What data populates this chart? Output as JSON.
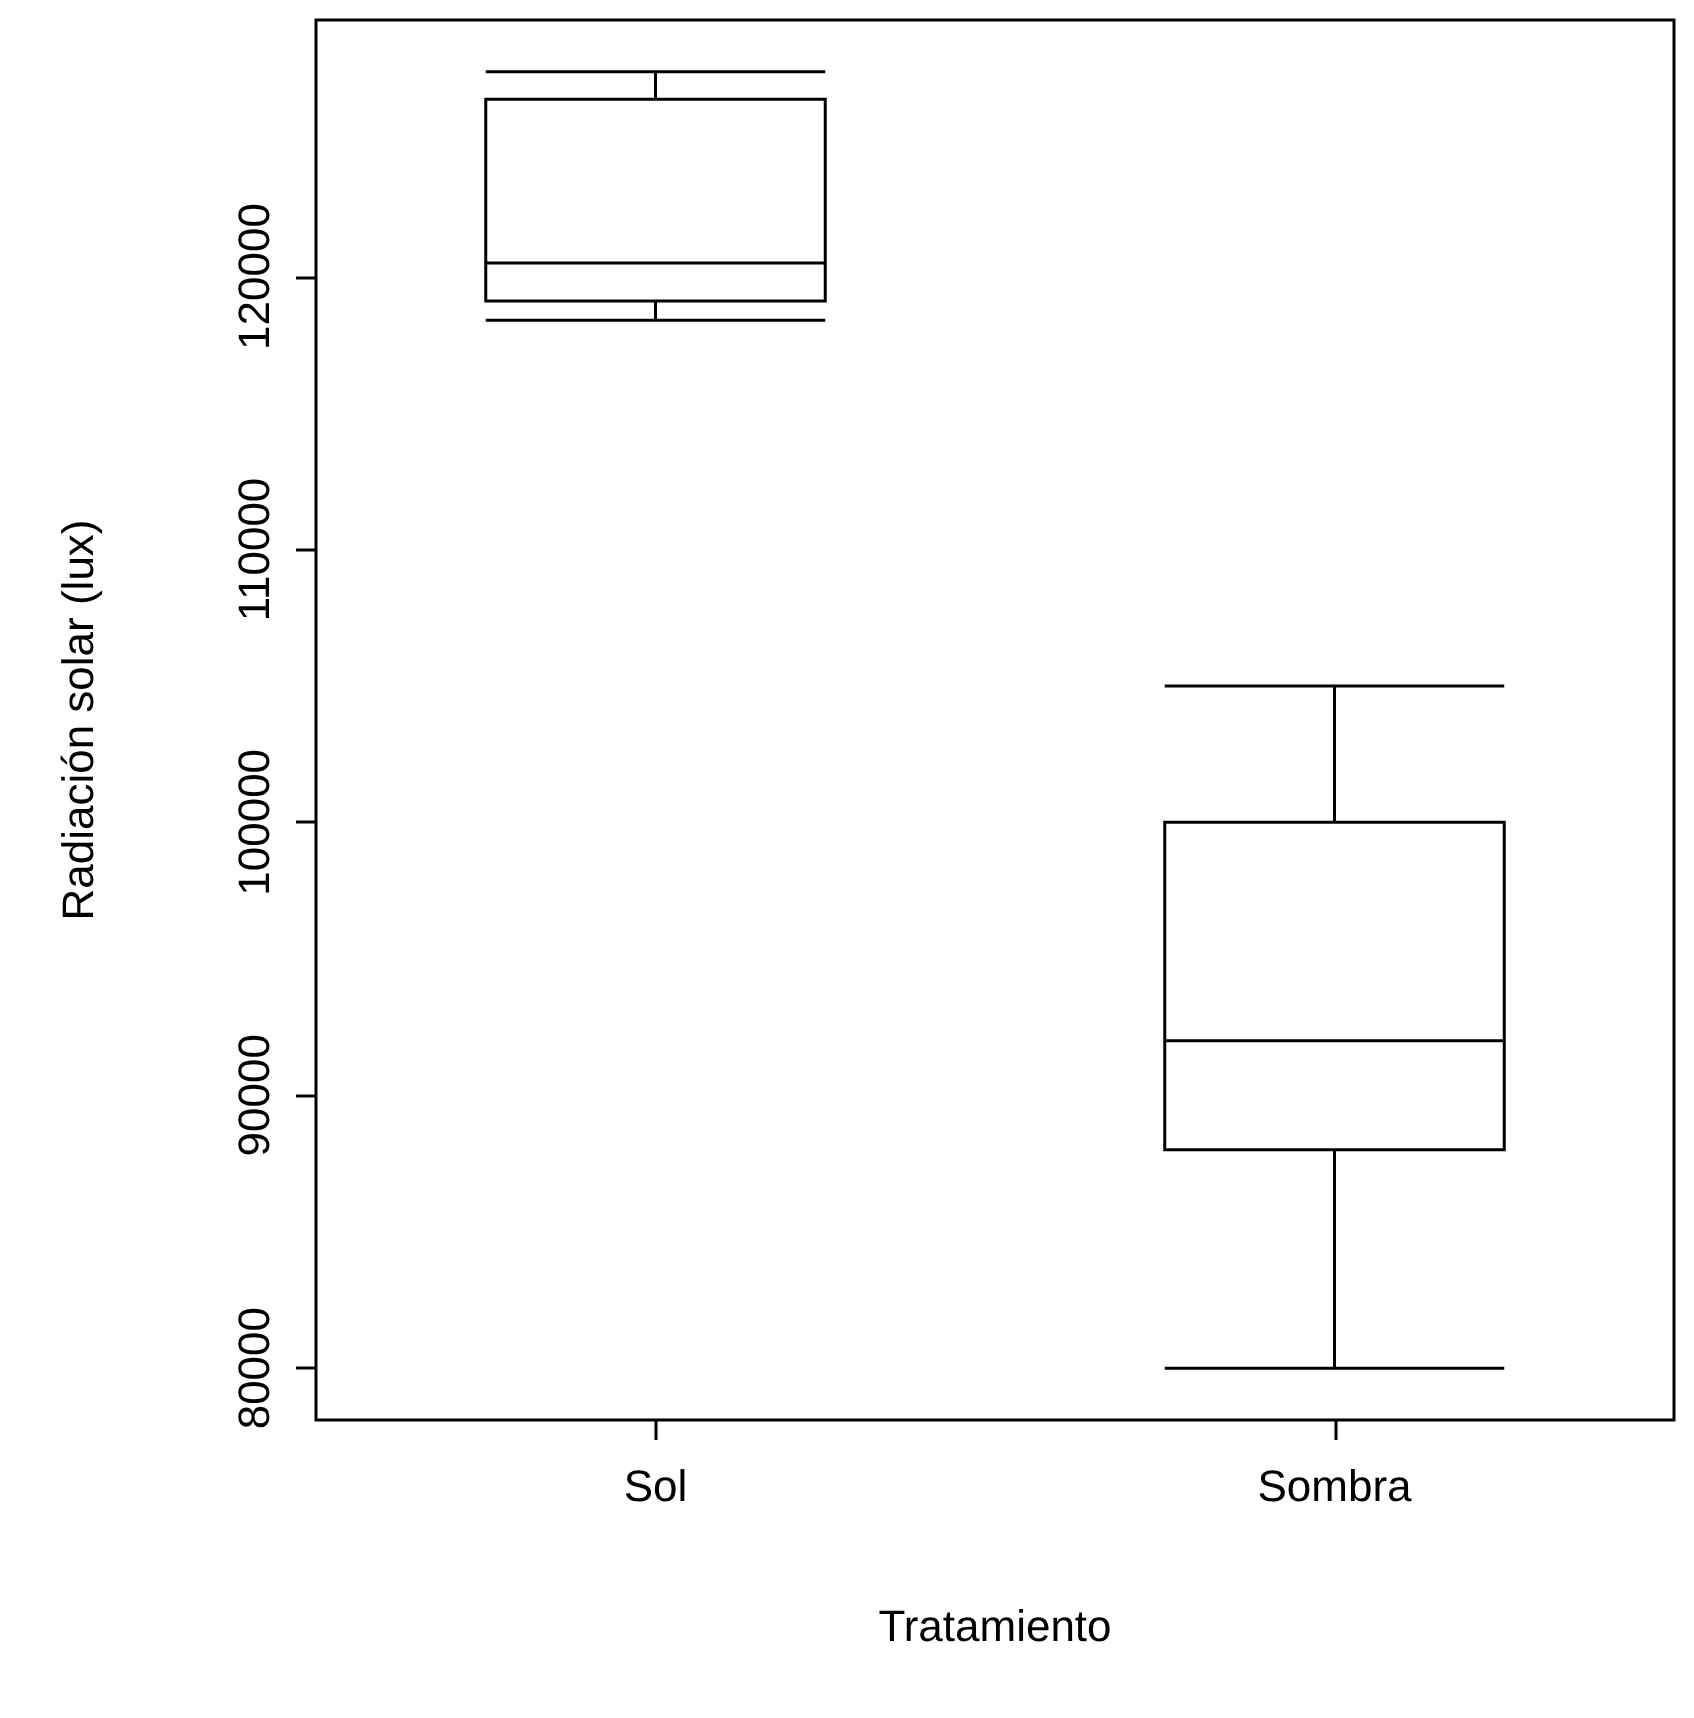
{
  "chart_data": {
    "type": "box",
    "xlabel": "Tratamiento",
    "ylabel": "Radiación solar (lux)",
    "categories": [
      "Sol",
      "Sombra"
    ],
    "boxes": [
      {
        "low": 118400,
        "q1": 119100,
        "median": 120500,
        "q3": 126500,
        "high": 127500
      },
      {
        "low": 80000,
        "q1": 88000,
        "median": 92000,
        "q3": 100000,
        "high": 105000
      }
    ],
    "ylim": [
      78100,
      129400
    ],
    "yticks": [
      80000,
      90000,
      100000,
      110000,
      120000
    ]
  }
}
